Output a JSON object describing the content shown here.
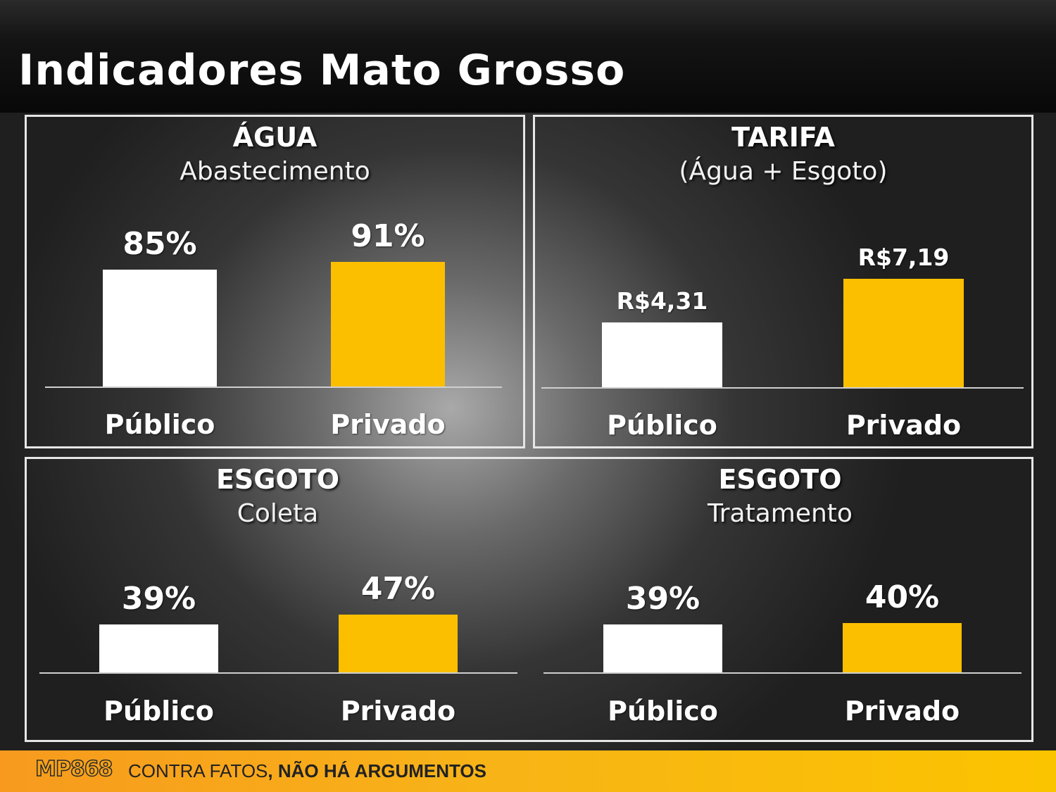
{
  "title": "Indicadores Mato Grosso",
  "colors": {
    "publico": "#ffffff",
    "privado": "#fbbf00",
    "accent": "#f8b317"
  },
  "footer": {
    "logo": "MP868",
    "slogan_part1": "CONTRA FATOS",
    "slogan_part2": ", NÃO HÁ ARGUMENTOS"
  },
  "chart_data": [
    {
      "id": "agua",
      "type": "bar",
      "title": "ÁGUA",
      "subtitle": "Abastecimento",
      "categories": [
        "Público",
        "Privado"
      ],
      "values": [
        85,
        91
      ],
      "value_labels": [
        "85%",
        "91%"
      ],
      "ylim": [
        0,
        100
      ]
    },
    {
      "id": "tarifa",
      "type": "bar",
      "title": "TARIFA",
      "subtitle": "(Água + Esgoto)",
      "categories": [
        "Público",
        "Privado"
      ],
      "values": [
        4.31,
        7.19
      ],
      "value_labels": [
        "R$4,31",
        "R$7,19"
      ],
      "ylim": [
        0,
        14
      ]
    },
    {
      "id": "coleta",
      "type": "bar",
      "title": "ESGOTO",
      "subtitle": "Coleta",
      "categories": [
        "Público",
        "Privado"
      ],
      "values": [
        39,
        47
      ],
      "value_labels": [
        "39%",
        "47%"
      ],
      "ylim": [
        0,
        100
      ]
    },
    {
      "id": "tratamento",
      "type": "bar",
      "title": "ESGOTO",
      "subtitle": "Tratamento",
      "categories": [
        "Público",
        "Privado"
      ],
      "values": [
        39,
        40
      ],
      "value_labels": [
        "39%",
        "40%"
      ],
      "ylim": [
        0,
        100
      ]
    }
  ]
}
